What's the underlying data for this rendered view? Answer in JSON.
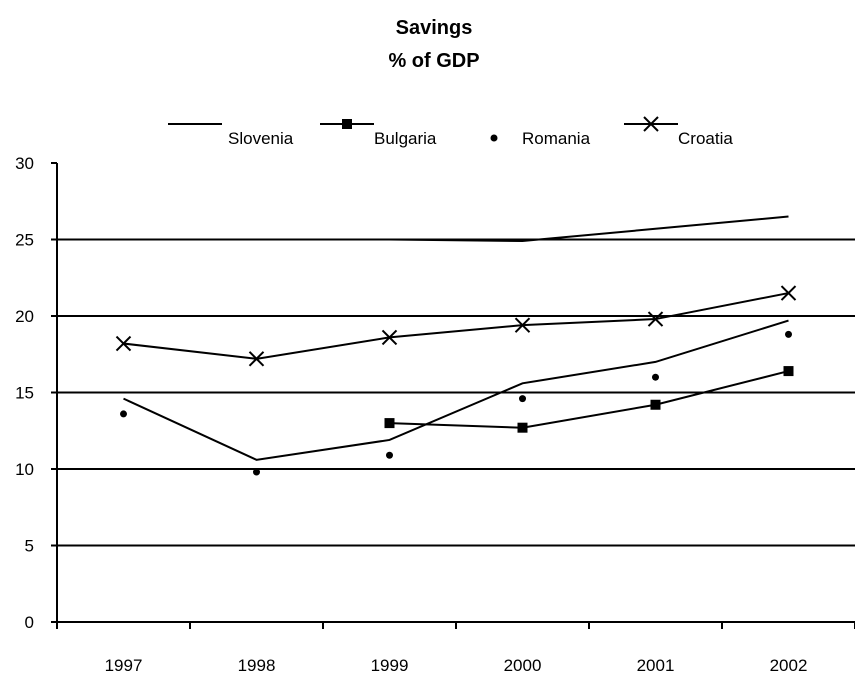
{
  "chart_data": {
    "type": "line",
    "title": "Savings",
    "subtitle": "% of GDP",
    "xlabel": "",
    "ylabel": "",
    "categories": [
      "1997",
      "1998",
      "1999",
      "2000",
      "2001",
      "2002"
    ],
    "ylim": [
      0,
      30
    ],
    "yticks": [
      0,
      5,
      10,
      15,
      20,
      25,
      30
    ],
    "grid": true,
    "legend_position": "top",
    "series": [
      {
        "name": "Slovenia",
        "marker": "none",
        "values": [
          null,
          null,
          25.0,
          24.9,
          25.7,
          26.5
        ]
      },
      {
        "name": "Bulgaria",
        "marker": "square",
        "values": [
          null,
          null,
          13.0,
          12.7,
          14.2,
          16.4
        ]
      },
      {
        "name": "Romania",
        "marker": "dot",
        "values": [
          13.6,
          9.8,
          10.9,
          14.6,
          16.0,
          18.8
        ]
      },
      {
        "name": "Croatia",
        "marker": "x",
        "values": [
          18.2,
          17.2,
          18.6,
          19.4,
          19.8,
          21.5
        ]
      }
    ],
    "trendline": {
      "values": [
        14.6,
        10.6,
        11.9,
        15.6,
        17.0,
        19.7
      ]
    }
  }
}
